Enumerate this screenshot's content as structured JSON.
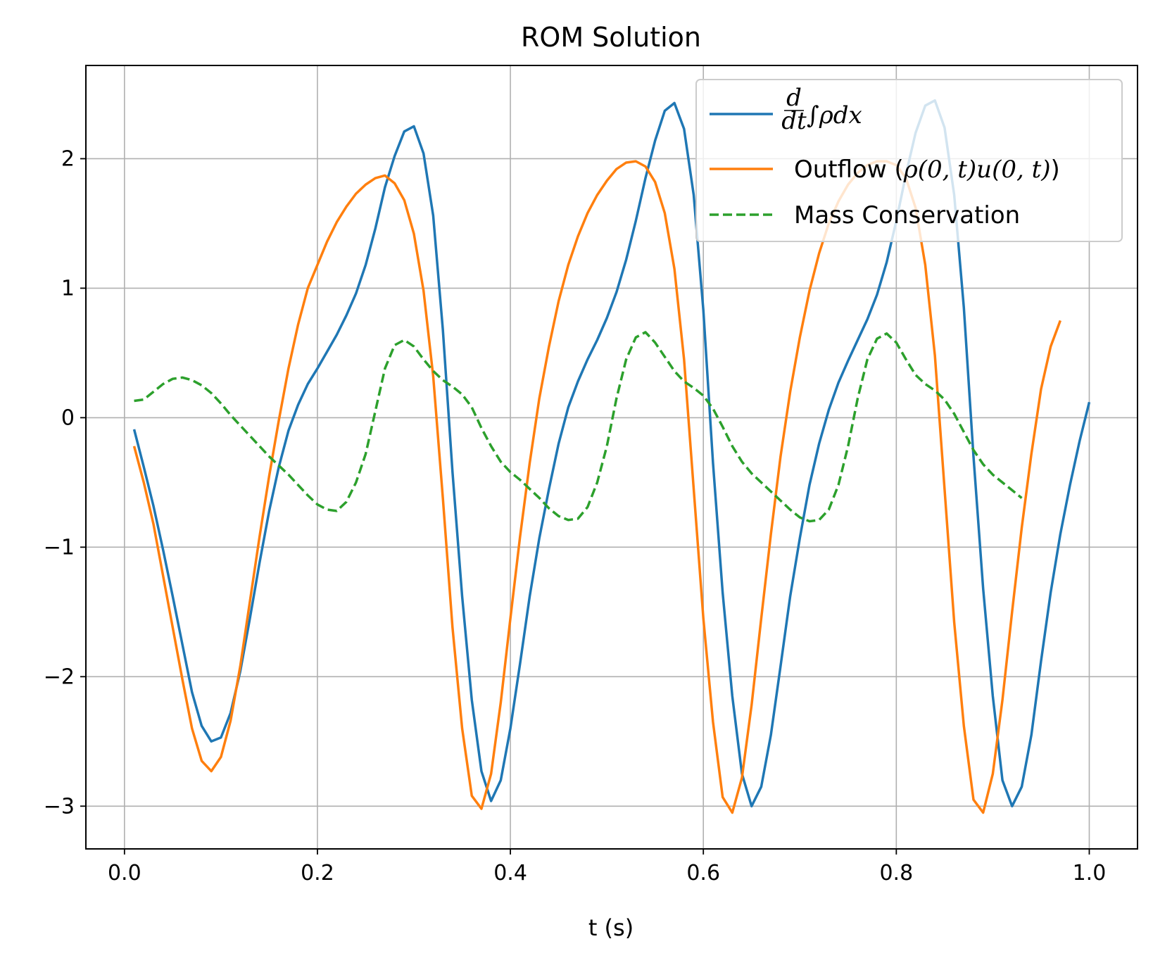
{
  "chart_data": {
    "type": "line",
    "title": "ROM Solution",
    "xlabel": "t (s)",
    "ylabel": "",
    "xlim": [
      -0.04,
      1.05
    ],
    "ylim": [
      -3.33,
      2.72
    ],
    "grid": true,
    "legend_position": "top-right",
    "xticks": [
      0.0,
      0.2,
      0.4,
      0.6,
      0.8,
      1.0
    ],
    "xtick_labels": [
      "0.0",
      "0.2",
      "0.4",
      "0.6",
      "0.8",
      "1.0"
    ],
    "yticks": [
      -3,
      -2,
      -1,
      0,
      1,
      2
    ],
    "ytick_labels": [
      "−3",
      "−2",
      "−1",
      "0",
      "1",
      "2"
    ],
    "series": [
      {
        "name": "d/dt ∫ρdx",
        "legend_parts": {
          "num": "d",
          "den": "dt",
          "rest": "∫ρdx"
        },
        "color": "#1f77b4",
        "dash": "solid",
        "points": [
          [
            0.01,
            -0.09
          ],
          [
            0.02,
            -0.38
          ],
          [
            0.03,
            -0.68
          ],
          [
            0.04,
            -1.02
          ],
          [
            0.05,
            -1.38
          ],
          [
            0.06,
            -1.75
          ],
          [
            0.07,
            -2.12
          ],
          [
            0.08,
            -2.38
          ],
          [
            0.09,
            -2.5
          ],
          [
            0.1,
            -2.47
          ],
          [
            0.11,
            -2.28
          ],
          [
            0.12,
            -1.96
          ],
          [
            0.13,
            -1.55
          ],
          [
            0.14,
            -1.12
          ],
          [
            0.15,
            -0.72
          ],
          [
            0.16,
            -0.38
          ],
          [
            0.17,
            -0.1
          ],
          [
            0.18,
            0.1
          ],
          [
            0.19,
            0.26
          ],
          [
            0.2,
            0.38
          ],
          [
            0.21,
            0.51
          ],
          [
            0.22,
            0.64
          ],
          [
            0.23,
            0.79
          ],
          [
            0.24,
            0.96
          ],
          [
            0.25,
            1.18
          ],
          [
            0.26,
            1.46
          ],
          [
            0.27,
            1.78
          ],
          [
            0.28,
            2.02
          ],
          [
            0.29,
            2.21
          ],
          [
            0.3,
            2.25
          ],
          [
            0.31,
            2.04
          ],
          [
            0.32,
            1.56
          ],
          [
            0.33,
            0.68
          ],
          [
            0.34,
            -0.42
          ],
          [
            0.35,
            -1.38
          ],
          [
            0.36,
            -2.18
          ],
          [
            0.37,
            -2.73
          ],
          [
            0.38,
            -2.96
          ],
          [
            0.39,
            -2.8
          ],
          [
            0.4,
            -2.4
          ],
          [
            0.41,
            -1.9
          ],
          [
            0.42,
            -1.38
          ],
          [
            0.43,
            -0.93
          ],
          [
            0.44,
            -0.55
          ],
          [
            0.45,
            -0.2
          ],
          [
            0.46,
            0.08
          ],
          [
            0.47,
            0.28
          ],
          [
            0.48,
            0.45
          ],
          [
            0.49,
            0.6
          ],
          [
            0.5,
            0.77
          ],
          [
            0.51,
            0.97
          ],
          [
            0.52,
            1.22
          ],
          [
            0.53,
            1.52
          ],
          [
            0.54,
            1.85
          ],
          [
            0.55,
            2.14
          ],
          [
            0.56,
            2.37
          ],
          [
            0.57,
            2.43
          ],
          [
            0.58,
            2.23
          ],
          [
            0.59,
            1.72
          ],
          [
            0.6,
            0.83
          ],
          [
            0.61,
            -0.35
          ],
          [
            0.62,
            -1.35
          ],
          [
            0.63,
            -2.15
          ],
          [
            0.64,
            -2.75
          ],
          [
            0.65,
            -3.0
          ],
          [
            0.66,
            -2.85
          ],
          [
            0.67,
            -2.45
          ],
          [
            0.68,
            -1.92
          ],
          [
            0.69,
            -1.38
          ],
          [
            0.7,
            -0.93
          ],
          [
            0.71,
            -0.52
          ],
          [
            0.72,
            -0.2
          ],
          [
            0.73,
            0.06
          ],
          [
            0.74,
            0.27
          ],
          [
            0.75,
            0.44
          ],
          [
            0.76,
            0.6
          ],
          [
            0.77,
            0.76
          ],
          [
            0.78,
            0.95
          ],
          [
            0.79,
            1.2
          ],
          [
            0.8,
            1.52
          ],
          [
            0.81,
            1.88
          ],
          [
            0.82,
            2.2
          ],
          [
            0.83,
            2.41
          ],
          [
            0.84,
            2.45
          ],
          [
            0.85,
            2.24
          ],
          [
            0.86,
            1.72
          ],
          [
            0.87,
            0.85
          ],
          [
            0.88,
            -0.3
          ],
          [
            0.89,
            -1.32
          ],
          [
            0.9,
            -2.15
          ],
          [
            0.91,
            -2.8
          ],
          [
            0.92,
            -3.0
          ],
          [
            0.93,
            -2.85
          ],
          [
            0.94,
            -2.45
          ],
          [
            0.95,
            -1.88
          ],
          [
            0.96,
            -1.35
          ],
          [
            0.97,
            -0.9
          ],
          [
            0.98,
            -0.52
          ],
          [
            0.99,
            -0.18
          ],
          [
            1.0,
            0.12
          ]
        ]
      },
      {
        "name": "Outflow (ρ(0,t)u(0,t))",
        "legend_parts": {
          "prefix": "Outflow (",
          "math": "ρ(0, t)u(0, t)",
          "suffix": ")"
        },
        "color": "#ff7f0e",
        "dash": "solid",
        "points": [
          [
            0.01,
            -0.22
          ],
          [
            0.02,
            -0.5
          ],
          [
            0.03,
            -0.82
          ],
          [
            0.04,
            -1.22
          ],
          [
            0.05,
            -1.62
          ],
          [
            0.06,
            -2.02
          ],
          [
            0.07,
            -2.4
          ],
          [
            0.08,
            -2.65
          ],
          [
            0.09,
            -2.73
          ],
          [
            0.1,
            -2.62
          ],
          [
            0.11,
            -2.34
          ],
          [
            0.12,
            -1.92
          ],
          [
            0.13,
            -1.42
          ],
          [
            0.14,
            -0.92
          ],
          [
            0.15,
            -0.45
          ],
          [
            0.16,
            -0.02
          ],
          [
            0.17,
            0.38
          ],
          [
            0.18,
            0.72
          ],
          [
            0.19,
            1.0
          ],
          [
            0.2,
            1.18
          ],
          [
            0.21,
            1.36
          ],
          [
            0.22,
            1.51
          ],
          [
            0.23,
            1.63
          ],
          [
            0.24,
            1.73
          ],
          [
            0.25,
            1.8
          ],
          [
            0.26,
            1.85
          ],
          [
            0.27,
            1.87
          ],
          [
            0.28,
            1.81
          ],
          [
            0.29,
            1.68
          ],
          [
            0.3,
            1.42
          ],
          [
            0.31,
            0.98
          ],
          [
            0.32,
            0.32
          ],
          [
            0.33,
            -0.62
          ],
          [
            0.34,
            -1.62
          ],
          [
            0.35,
            -2.4
          ],
          [
            0.36,
            -2.92
          ],
          [
            0.37,
            -3.02
          ],
          [
            0.38,
            -2.75
          ],
          [
            0.39,
            -2.2
          ],
          [
            0.4,
            -1.55
          ],
          [
            0.41,
            -0.92
          ],
          [
            0.42,
            -0.35
          ],
          [
            0.43,
            0.15
          ],
          [
            0.44,
            0.55
          ],
          [
            0.45,
            0.9
          ],
          [
            0.46,
            1.18
          ],
          [
            0.47,
            1.4
          ],
          [
            0.48,
            1.58
          ],
          [
            0.49,
            1.72
          ],
          [
            0.5,
            1.83
          ],
          [
            0.51,
            1.92
          ],
          [
            0.52,
            1.97
          ],
          [
            0.53,
            1.98
          ],
          [
            0.54,
            1.94
          ],
          [
            0.55,
            1.82
          ],
          [
            0.56,
            1.58
          ],
          [
            0.57,
            1.15
          ],
          [
            0.58,
            0.45
          ],
          [
            0.59,
            -0.55
          ],
          [
            0.6,
            -1.55
          ],
          [
            0.61,
            -2.35
          ],
          [
            0.62,
            -2.93
          ],
          [
            0.63,
            -3.05
          ],
          [
            0.64,
            -2.78
          ],
          [
            0.65,
            -2.22
          ],
          [
            0.66,
            -1.55
          ],
          [
            0.67,
            -0.9
          ],
          [
            0.68,
            -0.3
          ],
          [
            0.69,
            0.2
          ],
          [
            0.7,
            0.62
          ],
          [
            0.71,
            0.98
          ],
          [
            0.72,
            1.27
          ],
          [
            0.73,
            1.5
          ],
          [
            0.74,
            1.67
          ],
          [
            0.75,
            1.8
          ],
          [
            0.76,
            1.89
          ],
          [
            0.77,
            1.95
          ],
          [
            0.78,
            1.98
          ],
          [
            0.79,
            1.98
          ],
          [
            0.8,
            1.95
          ],
          [
            0.81,
            1.85
          ],
          [
            0.82,
            1.62
          ],
          [
            0.83,
            1.18
          ],
          [
            0.84,
            0.48
          ],
          [
            0.85,
            -0.55
          ],
          [
            0.86,
            -1.58
          ],
          [
            0.87,
            -2.38
          ],
          [
            0.88,
            -2.95
          ],
          [
            0.89,
            -3.05
          ],
          [
            0.9,
            -2.75
          ],
          [
            0.91,
            -2.18
          ],
          [
            0.92,
            -1.5
          ],
          [
            0.93,
            -0.85
          ],
          [
            0.94,
            -0.28
          ],
          [
            0.95,
            0.22
          ],
          [
            0.96,
            0.55
          ],
          [
            0.97,
            0.75
          ]
        ]
      },
      {
        "name": "Mass Conservation",
        "color": "#2ca02c",
        "dash": "dashed",
        "points": [
          [
            0.01,
            0.13
          ],
          [
            0.02,
            0.14
          ],
          [
            0.03,
            0.2
          ],
          [
            0.04,
            0.26
          ],
          [
            0.05,
            0.3
          ],
          [
            0.06,
            0.31
          ],
          [
            0.07,
            0.29
          ],
          [
            0.08,
            0.25
          ],
          [
            0.09,
            0.19
          ],
          [
            0.1,
            0.11
          ],
          [
            0.11,
            0.02
          ],
          [
            0.12,
            -0.06
          ],
          [
            0.13,
            -0.14
          ],
          [
            0.14,
            -0.22
          ],
          [
            0.15,
            -0.3
          ],
          [
            0.16,
            -0.37
          ],
          [
            0.17,
            -0.44
          ],
          [
            0.18,
            -0.52
          ],
          [
            0.19,
            -0.6
          ],
          [
            0.2,
            -0.67
          ],
          [
            0.21,
            -0.71
          ],
          [
            0.22,
            -0.72
          ],
          [
            0.23,
            -0.65
          ],
          [
            0.24,
            -0.5
          ],
          [
            0.25,
            -0.28
          ],
          [
            0.26,
            0.05
          ],
          [
            0.27,
            0.38
          ],
          [
            0.28,
            0.56
          ],
          [
            0.29,
            0.6
          ],
          [
            0.3,
            0.55
          ],
          [
            0.31,
            0.45
          ],
          [
            0.32,
            0.36
          ],
          [
            0.33,
            0.29
          ],
          [
            0.34,
            0.24
          ],
          [
            0.35,
            0.18
          ],
          [
            0.36,
            0.08
          ],
          [
            0.37,
            -0.08
          ],
          [
            0.38,
            -0.22
          ],
          [
            0.39,
            -0.34
          ],
          [
            0.4,
            -0.42
          ],
          [
            0.41,
            -0.48
          ],
          [
            0.42,
            -0.55
          ],
          [
            0.43,
            -0.62
          ],
          [
            0.44,
            -0.7
          ],
          [
            0.45,
            -0.76
          ],
          [
            0.46,
            -0.79
          ],
          [
            0.47,
            -0.78
          ],
          [
            0.48,
            -0.69
          ],
          [
            0.49,
            -0.5
          ],
          [
            0.5,
            -0.22
          ],
          [
            0.51,
            0.15
          ],
          [
            0.52,
            0.45
          ],
          [
            0.53,
            0.62
          ],
          [
            0.54,
            0.66
          ],
          [
            0.55,
            0.58
          ],
          [
            0.56,
            0.47
          ],
          [
            0.57,
            0.36
          ],
          [
            0.58,
            0.28
          ],
          [
            0.59,
            0.23
          ],
          [
            0.6,
            0.17
          ],
          [
            0.61,
            0.07
          ],
          [
            0.62,
            -0.07
          ],
          [
            0.63,
            -0.22
          ],
          [
            0.64,
            -0.34
          ],
          [
            0.65,
            -0.43
          ],
          [
            0.66,
            -0.5
          ],
          [
            0.67,
            -0.57
          ],
          [
            0.68,
            -0.64
          ],
          [
            0.69,
            -0.71
          ],
          [
            0.7,
            -0.77
          ],
          [
            0.71,
            -0.8
          ],
          [
            0.72,
            -0.79
          ],
          [
            0.73,
            -0.71
          ],
          [
            0.74,
            -0.52
          ],
          [
            0.75,
            -0.22
          ],
          [
            0.76,
            0.15
          ],
          [
            0.77,
            0.45
          ],
          [
            0.78,
            0.61
          ],
          [
            0.79,
            0.65
          ],
          [
            0.8,
            0.58
          ],
          [
            0.81,
            0.45
          ],
          [
            0.82,
            0.33
          ],
          [
            0.83,
            0.26
          ],
          [
            0.84,
            0.21
          ],
          [
            0.85,
            0.14
          ],
          [
            0.86,
            0.03
          ],
          [
            0.87,
            -0.11
          ],
          [
            0.88,
            -0.25
          ],
          [
            0.89,
            -0.36
          ],
          [
            0.9,
            -0.44
          ],
          [
            0.91,
            -0.5
          ],
          [
            0.92,
            -0.56
          ],
          [
            0.93,
            -0.62
          ]
        ]
      }
    ]
  }
}
